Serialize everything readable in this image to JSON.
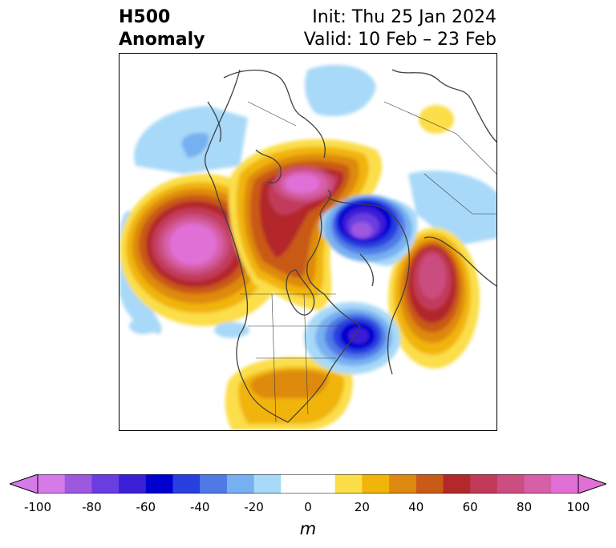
{
  "title": {
    "line1": "H500",
    "line2": "Anomaly",
    "init": "Init: Thu 25 Jan 2024",
    "valid": "Valid: 10 Feb – 23 Feb"
  },
  "colorbar": {
    "unit": "m",
    "ticks": [
      "-100",
      "-80",
      "-60",
      "-40",
      "-20",
      "0",
      "20",
      "40",
      "60",
      "80",
      "100"
    ],
    "colors": [
      "#d67ae8",
      "#9e58e0",
      "#6a3de0",
      "#3b1fd6",
      "#0000d0",
      "#2a3fe0",
      "#4f7ae6",
      "#77b0f0",
      "#a8d9f8",
      "#ffffff",
      "#fbde4a",
      "#f1b40a",
      "#de8a10",
      "#c95a18",
      "#b3282a",
      "#c23a5a",
      "#cb4e80",
      "#d65fa8",
      "#e070d6"
    ]
  },
  "map": {
    "anomalies": [
      {
        "name": "ridge-pacific",
        "sign": "positive",
        "peak": 100
      },
      {
        "name": "ridge-greenland-arctic",
        "sign": "positive",
        "peak": 100
      },
      {
        "name": "ridge-scandinavia",
        "sign": "positive",
        "peak": 80
      },
      {
        "name": "ridge-southern-us",
        "sign": "positive",
        "peak": 40
      },
      {
        "name": "trough-siberia",
        "sign": "negative",
        "peak": -80
      },
      {
        "name": "trough-atlantic",
        "sign": "negative",
        "peak": -60
      }
    ]
  }
}
